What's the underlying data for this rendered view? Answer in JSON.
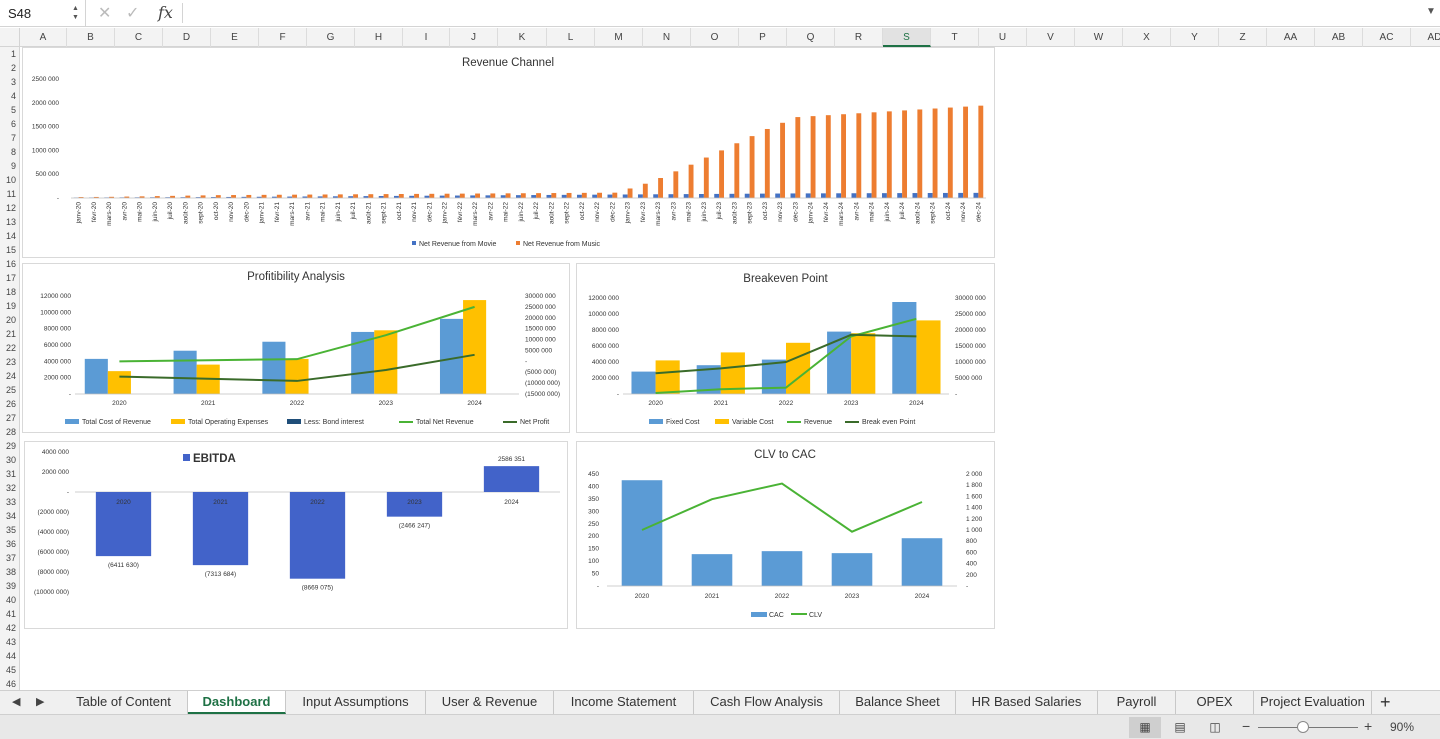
{
  "formula_bar": {
    "name_box": "S48",
    "fx": "fx",
    "formula": ""
  },
  "columns": [
    "A",
    "B",
    "C",
    "D",
    "E",
    "F",
    "G",
    "H",
    "I",
    "J",
    "K",
    "L",
    "M",
    "N",
    "O",
    "P",
    "Q",
    "R",
    "S",
    "T",
    "U",
    "V",
    "W",
    "X",
    "Y",
    "Z",
    "AA",
    "AB",
    "AC",
    "AD"
  ],
  "active_column": "S",
  "rows": [
    "1",
    "2",
    "3",
    "4",
    "5",
    "6",
    "7",
    "8",
    "9",
    "10",
    "11",
    "12",
    "13",
    "14",
    "15",
    "16",
    "17",
    "18",
    "19",
    "20",
    "21",
    "22",
    "23",
    "24",
    "25",
    "26",
    "27",
    "28",
    "29",
    "30",
    "31",
    "32",
    "33",
    "34",
    "35",
    "36",
    "37",
    "38",
    "39",
    "40",
    "41",
    "42",
    "43",
    "44",
    "45",
    "46"
  ],
  "colors": {
    "blue": "#4472c4",
    "orange": "#ed7d31",
    "lightblue": "#5b9bd5",
    "gold": "#ffc000",
    "darkblue": "#1f4e79",
    "green": "#4ab335",
    "darkgreen": "#3a6b2a",
    "ebitda": "#4263c9",
    "cac": "#5b9bd5",
    "clv": "#4ab335"
  },
  "charts": [
    {
      "title": "Revenue Channel",
      "type": "bar",
      "y_ticks": [
        "2500 000",
        "2000 000",
        "1500 000",
        "1000 000",
        "500 000",
        "-"
      ],
      "ylim": [
        0,
        2500000
      ],
      "categories": [
        "janv-20",
        "févr-20",
        "mars-20",
        "avr-20",
        "mai-20",
        "juin-20",
        "juil-20",
        "août-20",
        "sept-20",
        "oct-20",
        "nov-20",
        "déc-20",
        "janv-21",
        "févr-21",
        "mars-21",
        "avr-21",
        "mai-21",
        "juin-21",
        "juil-21",
        "août-21",
        "sept-21",
        "oct-21",
        "nov-21",
        "déc-21",
        "janv-22",
        "févr-22",
        "mars-22",
        "avr-22",
        "mai-22",
        "juin-22",
        "juil-22",
        "août-22",
        "sept-22",
        "oct-22",
        "nov-22",
        "déc-22",
        "janv-23",
        "févr-23",
        "mars-23",
        "avr-23",
        "mai-23",
        "juin-23",
        "juil-23",
        "août-23",
        "sept-23",
        "oct-23",
        "nov-23",
        "déc-23",
        "janv-24",
        "févr-24",
        "mars-24",
        "avr-24",
        "mai-24",
        "juin-24",
        "juil-24",
        "août-24",
        "sept-24",
        "oct-24",
        "nov-24",
        "déc-24"
      ],
      "series": [
        {
          "name": "Net Revenue from Movie",
          "values": [
            10000,
            11000,
            12000,
            13000,
            14000,
            15000,
            16000,
            17000,
            18000,
            20000,
            22000,
            24000,
            26000,
            28000,
            30000,
            32000,
            34000,
            36000,
            38000,
            40000,
            42000,
            44000,
            46000,
            48000,
            50000,
            52000,
            54000,
            56000,
            58000,
            60000,
            62000,
            64000,
            66000,
            68000,
            70000,
            72000,
            74000,
            76000,
            78000,
            80000,
            82000,
            84000,
            86000,
            88000,
            90000,
            92000,
            94000,
            96000,
            97000,
            98000,
            99000,
            100000,
            101000,
            102000,
            103000,
            104000,
            105000,
            106000,
            107000,
            108000
          ]
        },
        {
          "name": "Net Revenue from Music",
          "values": [
            20000,
            22000,
            25000,
            30000,
            35000,
            40000,
            45000,
            50000,
            55000,
            60000,
            62000,
            64000,
            66000,
            68000,
            70000,
            72000,
            74000,
            76000,
            78000,
            80000,
            82000,
            84000,
            86000,
            88000,
            90000,
            92000,
            94000,
            96000,
            98000,
            100000,
            102000,
            104000,
            106000,
            108000,
            110000,
            112000,
            200000,
            300000,
            420000,
            560000,
            700000,
            850000,
            1000000,
            1150000,
            1300000,
            1450000,
            1580000,
            1700000,
            1720000,
            1740000,
            1760000,
            1780000,
            1800000,
            1820000,
            1840000,
            1860000,
            1880000,
            1900000,
            1920000,
            1940000
          ]
        }
      ]
    },
    {
      "title": "Profitibility Analysis",
      "categories": [
        "2020",
        "2021",
        "2022",
        "2023",
        "2024"
      ],
      "left_ticks": [
        "12000 000",
        "10000 000",
        "8000 000",
        "6000 000",
        "4000 000",
        "2000 000",
        "-"
      ],
      "right_ticks": [
        "30000 000",
        "25000 000",
        "20000 000",
        "15000 000",
        "10000 000",
        "5000 000",
        "-",
        "(5000 000)",
        "(10000 000)",
        "(15000 000)"
      ],
      "ylim_left": [
        0,
        12000000
      ],
      "ylim_right": [
        -15000000,
        30000000
      ],
      "bars": [
        {
          "name": "Total Cost of Revenue",
          "values": [
            4300000,
            5300000,
            6400000,
            7600000,
            9200000
          ]
        },
        {
          "name": "Total Operating Expenses",
          "values": [
            2800000,
            3600000,
            4300000,
            7800000,
            11500000
          ]
        },
        {
          "name": "Less: Bond interest",
          "values": [
            0,
            0,
            0,
            0,
            0
          ]
        }
      ],
      "lines": [
        {
          "name": "Total Net Revenue",
          "values": [
            0,
            500000,
            1000000,
            12000000,
            25000000
          ]
        },
        {
          "name": "Net Profit",
          "values": [
            -7000000,
            -8000000,
            -9000000,
            -4000000,
            3000000
          ]
        }
      ]
    },
    {
      "title": "Breakeven Point",
      "categories": [
        "2020",
        "2021",
        "2022",
        "2023",
        "2024"
      ],
      "left_ticks": [
        "12000 000",
        "10000 000",
        "8000 000",
        "6000 000",
        "4000 000",
        "2000 000",
        "-"
      ],
      "right_ticks": [
        "30000 000",
        "25000 000",
        "20000 000",
        "15000 000",
        "10000 000",
        "5000 000",
        "-"
      ],
      "ylim_left": [
        0,
        12000000
      ],
      "ylim_right": [
        0,
        30000000
      ],
      "bars": [
        {
          "name": "Fixed Cost",
          "values": [
            2800000,
            3600000,
            4300000,
            7800000,
            11500000
          ]
        },
        {
          "name": "Variable Cost",
          "values": [
            4200000,
            5200000,
            6400000,
            7600000,
            9200000
          ]
        }
      ],
      "lines": [
        {
          "name": "Revenue",
          "values": [
            300000,
            1500000,
            2000000,
            18000000,
            23500000
          ]
        },
        {
          "name": "Break even Point",
          "values": [
            6500000,
            8000000,
            10000000,
            18500000,
            18000000
          ]
        }
      ]
    },
    {
      "title": "EBITDA",
      "categories": [
        "2020",
        "2021",
        "2022",
        "2023",
        "2024"
      ],
      "y_ticks": [
        "4000 000",
        "2000 000",
        "-",
        "(2000 000)",
        "(4000 000)",
        "(6000 000)",
        "(8000 000)",
        "(10000 000)"
      ],
      "ylim": [
        -10000000,
        4000000
      ],
      "values": [
        -6411630,
        -7313684,
        -8669075,
        -2466247,
        2586351
      ],
      "data_labels": [
        "(6411 630)",
        "(7313 684)",
        "(8669 075)",
        "(2466 247)",
        "2586 351"
      ]
    },
    {
      "title": "CLV to CAC",
      "categories": [
        "2020",
        "2021",
        "2022",
        "2023",
        "2024"
      ],
      "left_ticks": [
        "450",
        "400",
        "350",
        "300",
        "250",
        "200",
        "150",
        "100",
        "50",
        "-"
      ],
      "right_ticks": [
        "2 000",
        "1 800",
        "1 600",
        "1 400",
        "1 200",
        "1 000",
        "800",
        "600",
        "400",
        "200",
        "-"
      ],
      "ylim_left": [
        0,
        450
      ],
      "ylim_right": [
        0,
        2000
      ],
      "bars": [
        {
          "name": "CAC",
          "values": [
            425,
            128,
            140,
            132,
            192
          ]
        }
      ],
      "lines": [
        {
          "name": "CLV",
          "values": [
            1000,
            1550,
            1830,
            970,
            1500
          ]
        }
      ]
    }
  ],
  "sheet_tabs": [
    "Table of Content",
    "Dashboard",
    "Input Assumptions",
    "User & Revenue",
    "Income Statement",
    "Cash Flow Analysis",
    "Balance Sheet",
    "HR Based Salaries",
    "Payroll",
    "OPEX",
    "Project Evaluation"
  ],
  "active_tab": "Dashboard",
  "status": {
    "zoom": "90%"
  }
}
